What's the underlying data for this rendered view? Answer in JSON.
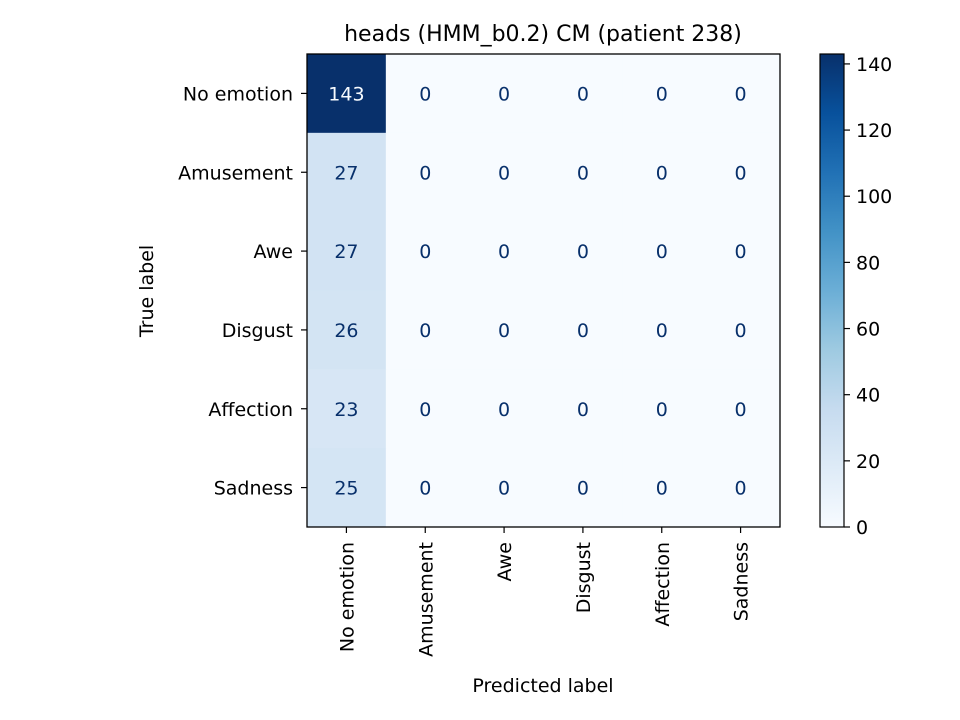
{
  "chart_data": {
    "type": "heatmap",
    "title": "heads (HMM_b0.2) CM (patient 238)",
    "xlabel": "Predicted label",
    "ylabel": "True label",
    "row_labels": [
      "No emotion",
      "Amusement",
      "Awe",
      "Disgust",
      "Affection",
      "Sadness"
    ],
    "col_labels": [
      "No emotion",
      "Amusement",
      "Awe",
      "Disgust",
      "Affection",
      "Sadness"
    ],
    "matrix": [
      [
        143,
        0,
        0,
        0,
        0,
        0
      ],
      [
        27,
        0,
        0,
        0,
        0,
        0
      ],
      [
        27,
        0,
        0,
        0,
        0,
        0
      ],
      [
        26,
        0,
        0,
        0,
        0,
        0
      ],
      [
        23,
        0,
        0,
        0,
        0,
        0
      ],
      [
        25,
        0,
        0,
        0,
        0,
        0
      ]
    ],
    "colormap": "Blues",
    "colorbar": {
      "min": 0,
      "max": 143,
      "ticks": [
        0,
        20,
        40,
        60,
        80,
        100,
        120,
        140
      ]
    },
    "grid": false
  }
}
